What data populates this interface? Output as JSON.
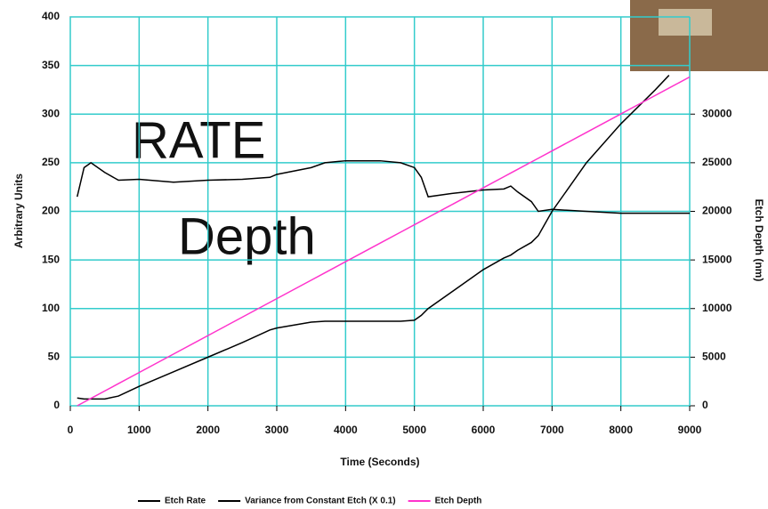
{
  "chart_data": {
    "type": "line",
    "x_label": "Time (Seconds)",
    "y_label": "Arbitrary Units",
    "y2_label": "Etch Depth (nm)",
    "annotations": [
      {
        "text": "RATE",
        "color": "#000000"
      },
      {
        "text": "Depth",
        "color": "#9933cc"
      }
    ],
    "x": [
      100,
      200,
      300,
      500,
      700,
      1000,
      1500,
      2000,
      2500,
      2900,
      3000,
      3500,
      3700,
      4000,
      4500,
      4800,
      5000,
      5100,
      5200,
      5500,
      6000,
      6300,
      6400,
      6500,
      6700,
      6800,
      7000,
      7500,
      8000,
      8500,
      8700,
      9000
    ],
    "series": [
      {
        "name": "Etch Rate",
        "color": "#000000",
        "axis": "y",
        "values": [
          215,
          245,
          250,
          240,
          232,
          233,
          230,
          232,
          233,
          235,
          238,
          245,
          250,
          252,
          252,
          250,
          245,
          235,
          215,
          218,
          222,
          223,
          226,
          220,
          210,
          200,
          202,
          200,
          198,
          198,
          198,
          198
        ]
      },
      {
        "name": "Variance from Constant Etch (X 0.1)",
        "color": "#000000",
        "axis": "y",
        "values": [
          8,
          7,
          7,
          7,
          10,
          20,
          35,
          50,
          65,
          78,
          80,
          86,
          87,
          87,
          87,
          87,
          88,
          93,
          100,
          115,
          140,
          152,
          155,
          160,
          168,
          175,
          200,
          250,
          290,
          325,
          340,
          null
        ]
      },
      {
        "name": "Etch Depth",
        "color": "#ff33cc",
        "axis": "y2",
        "values": [
          0,
          380,
          760,
          1520,
          2280,
          3420,
          5320,
          7220,
          9120,
          10640,
          11020,
          12920,
          13680,
          14820,
          16720,
          17860,
          18620,
          19000,
          19380,
          20520,
          22420,
          23560,
          23940,
          24320,
          25080,
          25460,
          26220,
          28120,
          30020,
          31920,
          32680,
          33820
        ]
      }
    ],
    "xlim": [
      0,
      9000
    ],
    "xticks": [
      0,
      1000,
      2000,
      3000,
      4000,
      5000,
      6000,
      7000,
      8000,
      9000
    ],
    "ylim": [
      0,
      400
    ],
    "yticks": [
      0,
      50,
      100,
      150,
      200,
      250,
      300,
      350,
      400
    ],
    "y2lim": [
      0,
      40000
    ],
    "y2ticks": [
      0,
      5000,
      10000,
      15000,
      20000,
      25000,
      30000
    ],
    "grid": true,
    "grid_color": "#33cccc",
    "legend": "bottom"
  }
}
